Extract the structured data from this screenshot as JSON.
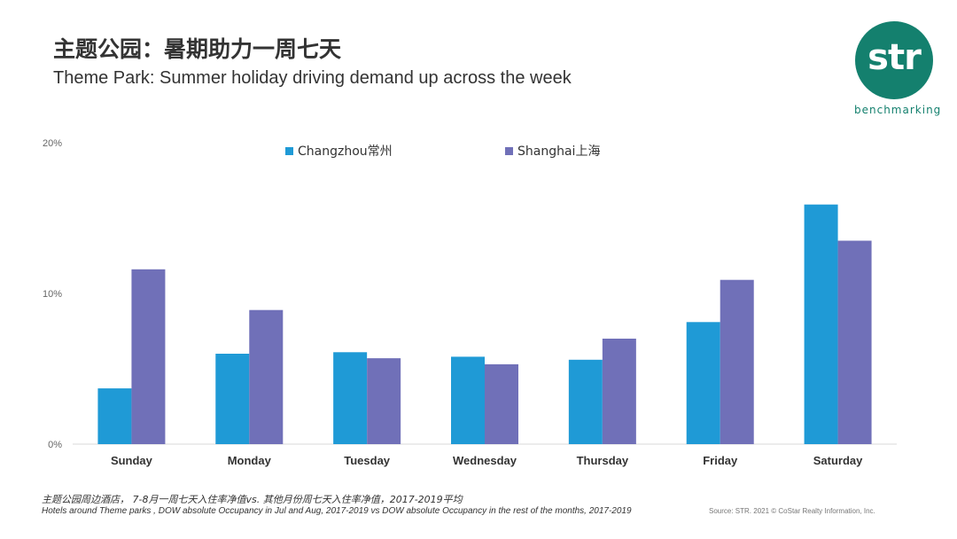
{
  "header": {
    "title_cn": "主题公园：暑期助力一周七天",
    "title_en": "Theme Park: Summer holiday driving demand up across the week"
  },
  "logo": {
    "mark": "str",
    "tagline": "benchmarking",
    "color": "#14806e"
  },
  "chart_data": {
    "type": "bar",
    "categories": [
      "Sunday",
      "Monday",
      "Tuesday",
      "Wednesday",
      "Thursday",
      "Friday",
      "Saturday"
    ],
    "series": [
      {
        "name": "Changzhou常州",
        "color": "#1f9ad6",
        "values": [
          3.7,
          6.0,
          6.1,
          5.8,
          5.6,
          8.1,
          15.9
        ]
      },
      {
        "name": "Shanghai上海",
        "color": "#7070b8",
        "values": [
          11.6,
          8.9,
          5.7,
          5.3,
          7.0,
          10.9,
          13.5
        ]
      }
    ],
    "ylim": [
      0,
      20
    ],
    "yticks": [
      0,
      10,
      20
    ],
    "ytick_labels": [
      "0%",
      "10%",
      "20%"
    ],
    "legend_position": "top-center",
    "grid": false
  },
  "footer": {
    "note_cn": "主题公园周边酒店， 7-8月一周七天入住率净值vs. 其他月份周七天入住率净值，2017-2019平均",
    "note_en": "Hotels around Theme parks , DOW absolute Occupancy in Jul and Aug, 2017-2019  vs DOW absolute Occupancy in the rest of the months, 2017-2019",
    "source": "Source: STR. 2021 © CoStar Realty Information, Inc."
  }
}
